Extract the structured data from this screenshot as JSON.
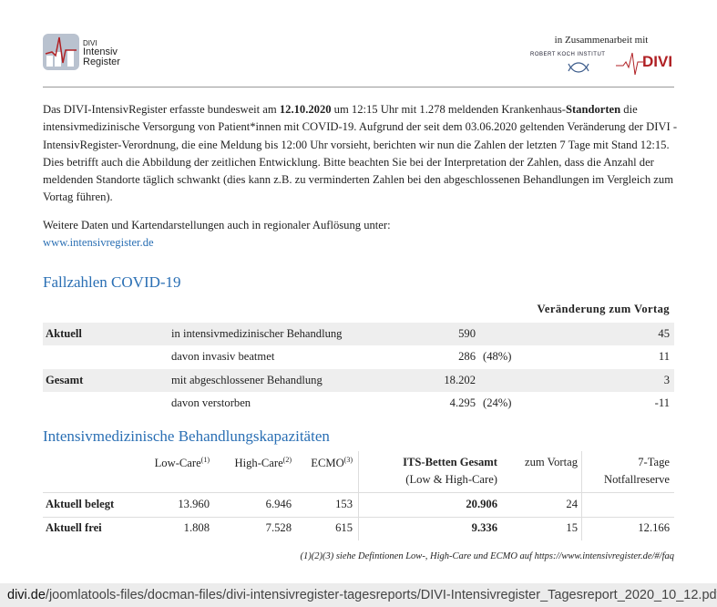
{
  "header": {
    "logo_line1": "DIVI",
    "logo_line2": "Intensiv",
    "logo_line3": "Register",
    "collab": "in Zusammenarbeit mit",
    "rki": "ROBERT KOCH INSTITUT",
    "divi": "DIVI"
  },
  "intro": {
    "p1_a": "Das DIVI-IntensivRegister erfasste bundesweit am ",
    "date": "12.10.2020",
    "p1_b": " um 12:15 Uhr mit 1.278 meldenden Krankenhaus-",
    "standorten": "Standorten",
    "p1_c": " die intensivmedizinische Versorgung von Patient*innen mit COVID-19. Aufgrund der seit dem 03.06.2020 geltenden Veränderung der DIVI -IntensivRegister-Verordnung, die eine Meldung bis 12:00 Uhr vorsieht, berichten wir nun die Zahlen der letzten 7 Tage mit Stand 12:15. Dies betrifft auch die Abbildung der zeitlichen Entwicklung. Bitte beachten Sie bei der Interpretation der Zahlen, dass die Anzahl der meldenden Standorte täglich schwankt (dies kann z.B. zu verminderten Zahlen bei den abgeschlossenen Behandlungen im Vergleich zum Vortag führen).",
    "p2": "Weitere Daten und Kartendarstellungen auch in regionaler Auflösung unter:",
    "link": "www.intensivregister.de"
  },
  "fallzahlen": {
    "title": "Fallzahlen COVID-19",
    "change_header": "Veränderung zum Vortag",
    "rows": [
      {
        "group": "Aktuell",
        "label": "in intensivmedizinischer Behandlung",
        "value": "590",
        "pct": "",
        "change": "45"
      },
      {
        "group": "",
        "label": "davon invasiv beatmet",
        "value": "286",
        "pct": "(48%)",
        "change": "11"
      },
      {
        "group": "Gesamt",
        "label": "mit abgeschlossener Behandlung",
        "value": "18.202",
        "pct": "",
        "change": "3"
      },
      {
        "group": "",
        "label": "davon verstorben",
        "value": "4.295",
        "pct": "(24%)",
        "change": "-11"
      }
    ]
  },
  "kapazitaeten": {
    "title": "Intensivmedizinische Behandlungskapazitäten",
    "headers": {
      "low": "Low-Care",
      "low_sup": "(1)",
      "high": "High-Care",
      "high_sup": "(2)",
      "ecmo": "ECMO",
      "ecmo_sup": "(3)",
      "its": "ITS-Betten Gesamt",
      "its_sub": "(Low & High-Care)",
      "vortag": "zum Vortag",
      "reserve1": "7-Tage",
      "reserve2": "Notfallreserve"
    },
    "rows": [
      {
        "label": "Aktuell belegt",
        "low": "13.960",
        "high": "6.946",
        "ecmo": "153",
        "its": "20.906",
        "vortag": "24",
        "reserve": ""
      },
      {
        "label": "Aktuell frei",
        "low": "1.808",
        "high": "7.528",
        "ecmo": "615",
        "its": "9.336",
        "vortag": "15",
        "reserve": "12.166"
      }
    ],
    "footnote": "(1)(2)(3) siehe Defintionen Low-, High-Care und ECMO auf https://www.intensivregister.de/#/faq"
  },
  "urlbar": {
    "domain": "divi.de",
    "path": "/joomlatools-files/docman-files/divi-intensivregister-tagesreports/DIVI-Intensivregister_Tagesreport_2020_10_12.pdf"
  }
}
